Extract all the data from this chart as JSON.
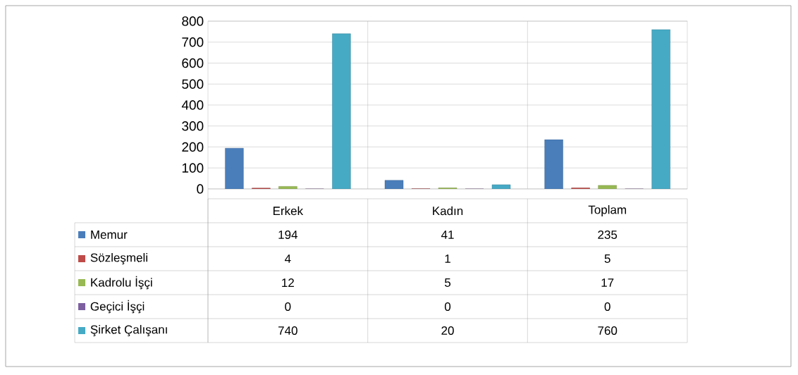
{
  "chart_data": {
    "type": "bar",
    "categories": [
      "Erkek",
      "Kadın",
      "Toplam"
    ],
    "series": [
      {
        "name": "Memur",
        "color": "#4a7ebb",
        "values": [
          194,
          41,
          235
        ]
      },
      {
        "name": "Sözleşmeli",
        "color": "#be4b48",
        "values": [
          4,
          1,
          5
        ]
      },
      {
        "name": "Kadrolu İşçi",
        "color": "#98b954",
        "values": [
          12,
          5,
          17
        ]
      },
      {
        "name": "Geçici İşçi",
        "color": "#7d60a0",
        "values": [
          0,
          0,
          0
        ]
      },
      {
        "name": "Şirket Çalışanı",
        "color": "#46aac5",
        "values": [
          740,
          20,
          760
        ]
      }
    ],
    "ylim": [
      0,
      800
    ],
    "yticks": [
      0,
      100,
      200,
      300,
      400,
      500,
      600,
      700,
      800
    ],
    "grid": true,
    "data_labels": true,
    "legend": "bottom left"
  }
}
